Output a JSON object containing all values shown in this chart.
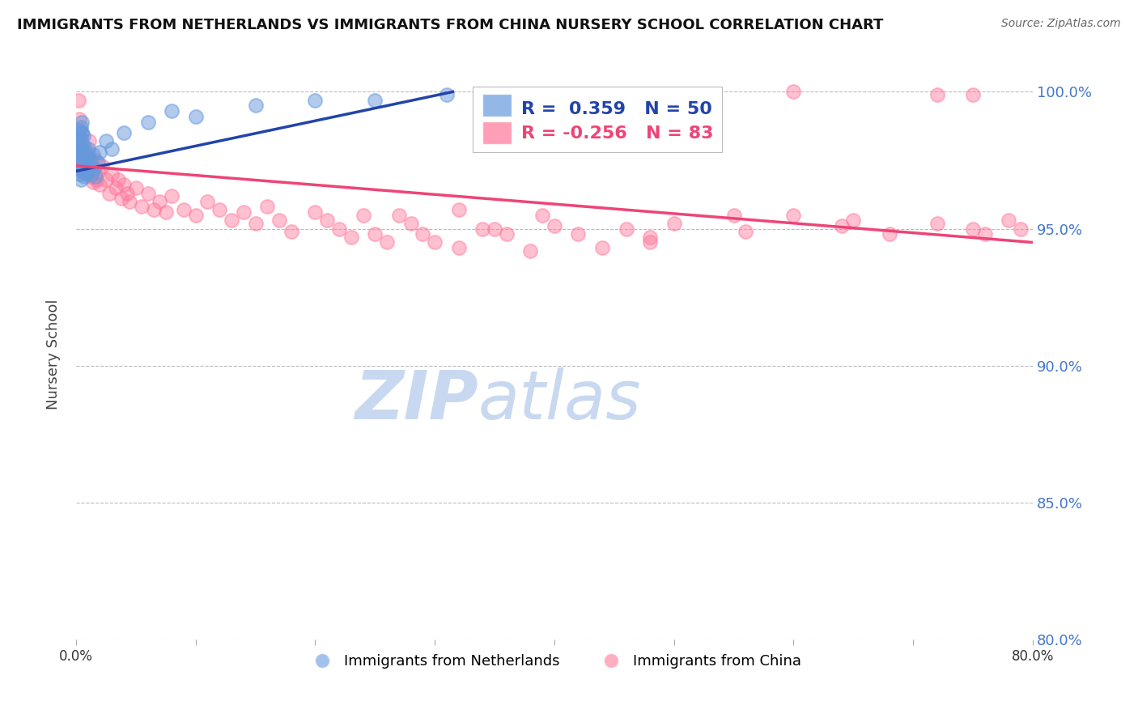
{
  "title": "IMMIGRANTS FROM NETHERLANDS VS IMMIGRANTS FROM CHINA NURSERY SCHOOL CORRELATION CHART",
  "source": "Source: ZipAtlas.com",
  "ylabel": "Nursery School",
  "legend_label1": "Immigrants from Netherlands",
  "legend_label2": "Immigrants from China",
  "R1": 0.359,
  "N1": 50,
  "R2": -0.256,
  "N2": 83,
  "color_blue": "#6699DD",
  "color_pink": "#FF7799",
  "color_line_blue": "#2244AA",
  "color_line_pink": "#EE4477",
  "color_axis_right": "#4477CC",
  "color_grid": "#BBBBBB",
  "color_watermark": "#C8D8F0",
  "xlim": [
    0.0,
    0.8
  ],
  "ylim": [
    0.8,
    1.008
  ],
  "yticks": [
    0.8,
    0.85,
    0.9,
    0.95,
    1.0
  ],
  "ytick_labels": [
    "80.0%",
    "85.0%",
    "90.0%",
    "95.0%",
    "100.0%"
  ],
  "xticks": [
    0.0,
    0.1,
    0.2,
    0.3,
    0.4,
    0.5,
    0.6,
    0.7,
    0.8
  ],
  "xtick_labels": [
    "0.0%",
    "",
    "",
    "",
    "",
    "",
    "",
    "",
    "80.0%"
  ],
  "nl_x": [
    0.001,
    0.001,
    0.002,
    0.002,
    0.002,
    0.003,
    0.003,
    0.003,
    0.003,
    0.004,
    0.004,
    0.004,
    0.004,
    0.004,
    0.005,
    0.005,
    0.005,
    0.005,
    0.005,
    0.006,
    0.006,
    0.006,
    0.006,
    0.007,
    0.007,
    0.007,
    0.008,
    0.008,
    0.009,
    0.009,
    0.01,
    0.01,
    0.011,
    0.012,
    0.013,
    0.014,
    0.015,
    0.016,
    0.018,
    0.02,
    0.025,
    0.03,
    0.04,
    0.06,
    0.08,
    0.1,
    0.15,
    0.2,
    0.25,
    0.31
  ],
  "nl_y": [
    0.974,
    0.978,
    0.972,
    0.98,
    0.984,
    0.97,
    0.976,
    0.982,
    0.986,
    0.968,
    0.975,
    0.979,
    0.983,
    0.987,
    0.973,
    0.977,
    0.981,
    0.985,
    0.989,
    0.971,
    0.975,
    0.98,
    0.984,
    0.969,
    0.974,
    0.978,
    0.972,
    0.977,
    0.97,
    0.975,
    0.974,
    0.979,
    0.976,
    0.973,
    0.97,
    0.977,
    0.972,
    0.969,
    0.974,
    0.978,
    0.982,
    0.979,
    0.985,
    0.989,
    0.993,
    0.991,
    0.995,
    0.997,
    0.997,
    0.999
  ],
  "china_x": [
    0.002,
    0.003,
    0.005,
    0.006,
    0.007,
    0.008,
    0.009,
    0.01,
    0.011,
    0.012,
    0.013,
    0.014,
    0.015,
    0.016,
    0.017,
    0.018,
    0.02,
    0.022,
    0.025,
    0.028,
    0.03,
    0.033,
    0.035,
    0.038,
    0.04,
    0.043,
    0.045,
    0.05,
    0.055,
    0.06,
    0.065,
    0.07,
    0.075,
    0.08,
    0.09,
    0.1,
    0.11,
    0.12,
    0.13,
    0.14,
    0.15,
    0.16,
    0.17,
    0.18,
    0.2,
    0.21,
    0.22,
    0.23,
    0.24,
    0.25,
    0.26,
    0.28,
    0.29,
    0.3,
    0.32,
    0.34,
    0.36,
    0.38,
    0.4,
    0.42,
    0.44,
    0.46,
    0.48,
    0.5,
    0.55,
    0.6,
    0.64,
    0.68,
    0.72,
    0.75,
    0.76,
    0.78,
    0.79,
    0.65,
    0.56,
    0.48,
    0.39,
    0.32,
    0.27,
    0.35,
    0.6,
    0.72,
    0.75
  ],
  "china_y": [
    0.997,
    0.99,
    0.985,
    0.978,
    0.98,
    0.975,
    0.97,
    0.977,
    0.982,
    0.969,
    0.974,
    0.967,
    0.972,
    0.975,
    0.968,
    0.971,
    0.966,
    0.973,
    0.968,
    0.963,
    0.97,
    0.965,
    0.968,
    0.961,
    0.966,
    0.963,
    0.96,
    0.965,
    0.958,
    0.963,
    0.957,
    0.96,
    0.956,
    0.962,
    0.957,
    0.955,
    0.96,
    0.957,
    0.953,
    0.956,
    0.952,
    0.958,
    0.953,
    0.949,
    0.956,
    0.953,
    0.95,
    0.947,
    0.955,
    0.948,
    0.945,
    0.952,
    0.948,
    0.945,
    0.943,
    0.95,
    0.948,
    0.942,
    0.951,
    0.948,
    0.943,
    0.95,
    0.947,
    0.952,
    0.955,
    0.955,
    0.951,
    0.948,
    0.952,
    0.95,
    0.948,
    0.953,
    0.95,
    0.953,
    0.949,
    0.945,
    0.955,
    0.957,
    0.955,
    0.95,
    1.0,
    0.999,
    0.999
  ],
  "nl_line_x": [
    0.0,
    0.315
  ],
  "nl_line_y": [
    0.971,
    1.0
  ],
  "china_line_x": [
    0.0,
    0.8
  ],
  "china_line_y": [
    0.973,
    0.945
  ]
}
